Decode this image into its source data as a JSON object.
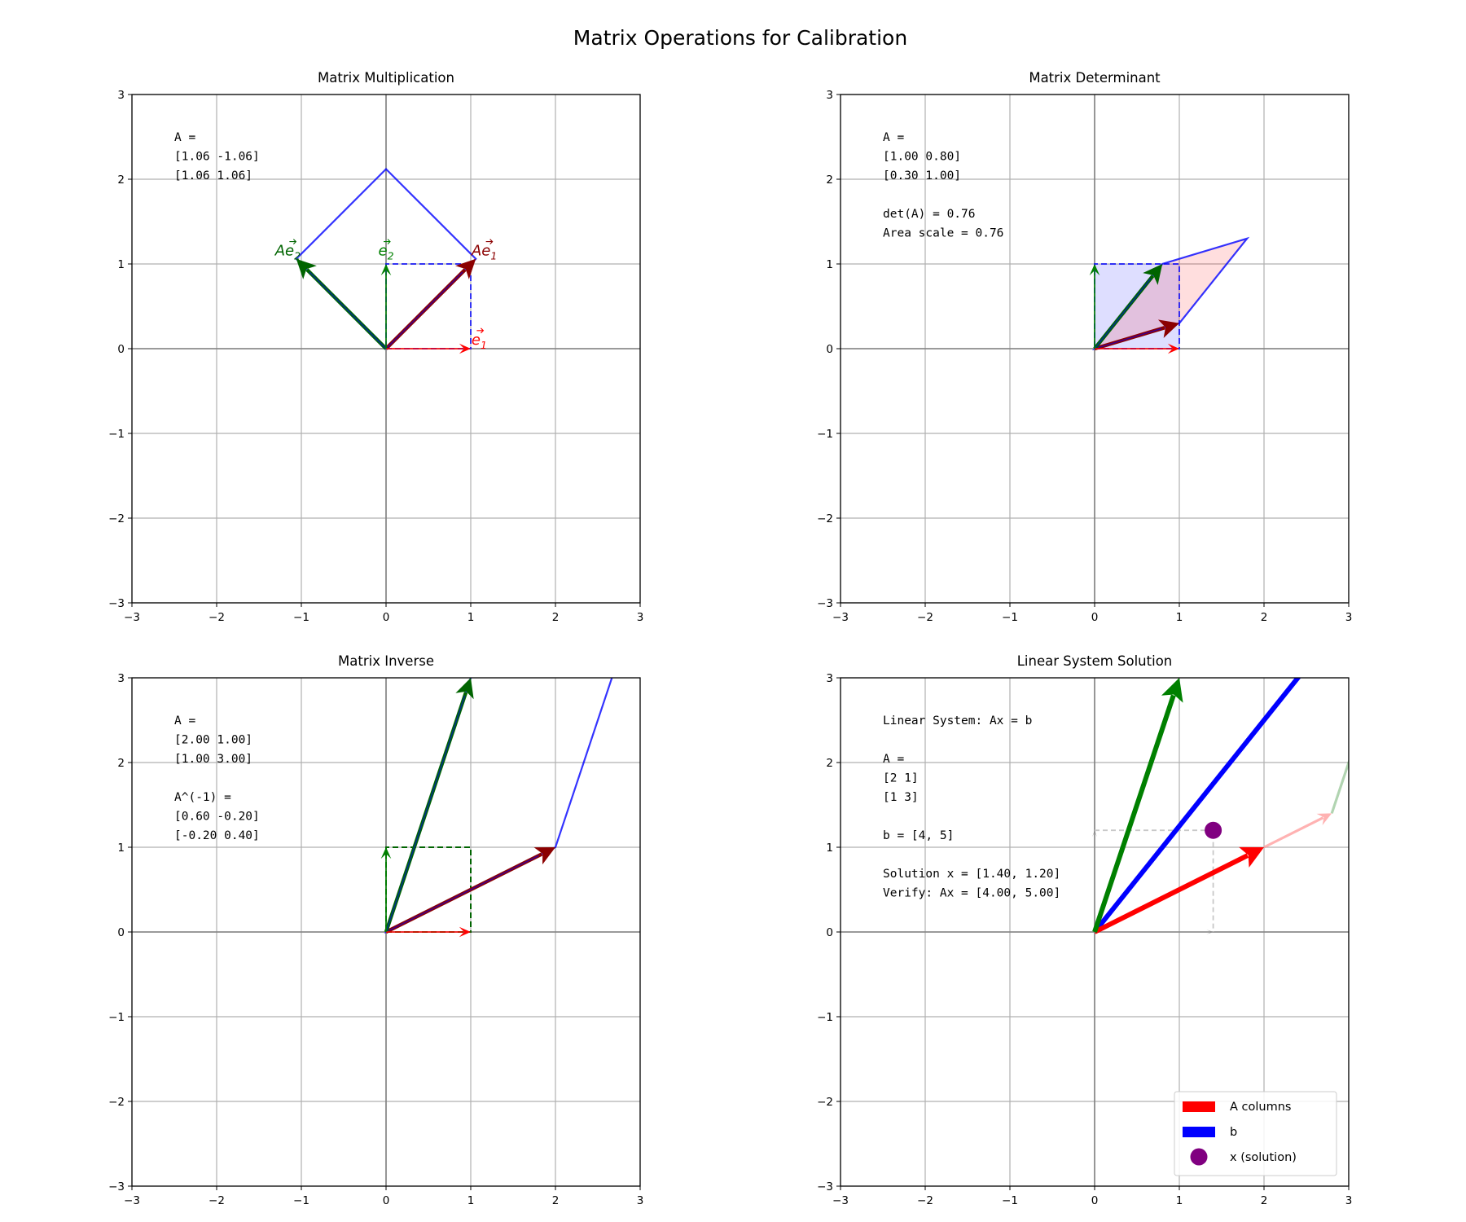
{
  "figure": {
    "title": "Matrix Operations for Calibration"
  },
  "colors": {
    "red": "#ff0000",
    "darkred": "#8b0000",
    "green": "#008000",
    "darkgreen": "#006400",
    "blue": "#0000ff",
    "purple": "#800080",
    "grid": "#b0b0b0",
    "axis": "#808080"
  },
  "chart_data": [
    {
      "id": "mult",
      "type": "vector-plot",
      "title": "Matrix Multiplication",
      "xlim": [
        -3,
        3
      ],
      "ylim": [
        -3,
        3
      ],
      "xticks": [
        "−3",
        "−2",
        "−1",
        "0",
        "1",
        "2",
        "3"
      ],
      "yticks": [
        "−3",
        "−2",
        "−1",
        "0",
        "1",
        "2",
        "3"
      ],
      "grid": true,
      "annotation": [
        "A =",
        "[1.06 -1.06]",
        "[1.06 1.06]"
      ],
      "matrix": [
        [
          1.06,
          -1.06
        ],
        [
          1.06,
          1.06
        ]
      ],
      "vectors": [
        {
          "name": "e1",
          "to": [
            1,
            0
          ],
          "color": "red",
          "width": 1.6
        },
        {
          "name": "e2",
          "to": [
            0,
            1
          ],
          "color": "green",
          "width": 1.6
        },
        {
          "name": "Ae1",
          "to": [
            1.06,
            1.06
          ],
          "color": "darkred",
          "width": 4.5
        },
        {
          "name": "Ae2",
          "to": [
            -1.06,
            1.06
          ],
          "color": "darkgreen",
          "width": 4.5
        }
      ],
      "unit_square": [
        [
          0,
          0
        ],
        [
          1,
          0
        ],
        [
          1,
          1
        ],
        [
          0,
          1
        ]
      ],
      "transformed": [
        [
          0,
          0
        ],
        [
          1.06,
          1.06
        ],
        [
          0,
          2.12
        ],
        [
          -1.06,
          1.06
        ]
      ],
      "labels": [
        {
          "id": "e1",
          "base": "e",
          "sub": "1",
          "at": [
            1.1,
            0.05
          ],
          "color": "red"
        },
        {
          "id": "e2",
          "base": "e",
          "sub": "2",
          "at": [
            0.0,
            1.1
          ],
          "color": "green"
        },
        {
          "id": "ae1",
          "base": "Ae",
          "sub": "1",
          "at": [
            1.16,
            1.1
          ],
          "color": "darkred"
        },
        {
          "id": "ae2",
          "base": "Ae",
          "sub": "2",
          "at": [
            -1.16,
            1.1
          ],
          "color": "darkgreen"
        }
      ]
    },
    {
      "id": "det",
      "type": "vector-plot",
      "title": "Matrix Determinant",
      "xlim": [
        -3,
        3
      ],
      "ylim": [
        -3,
        3
      ],
      "xticks": [
        "−3",
        "−2",
        "−1",
        "0",
        "1",
        "2",
        "3"
      ],
      "yticks": [
        "−3",
        "−2",
        "−1",
        "0",
        "1",
        "2",
        "3"
      ],
      "grid": true,
      "annotation": [
        "A =",
        "[1.00 0.80]",
        "[0.30 1.00]",
        "",
        "det(A) = 0.76",
        "Area scale = 0.76"
      ],
      "matrix": [
        [
          1.0,
          0.8
        ],
        [
          0.3,
          1.0
        ]
      ],
      "determinant": 0.76,
      "vectors": [
        {
          "name": "e1",
          "to": [
            1,
            0
          ],
          "color": "red",
          "width": 1.6
        },
        {
          "name": "e2",
          "to": [
            0,
            1
          ],
          "color": "green",
          "width": 1.6
        },
        {
          "name": "Ae1",
          "to": [
            1.0,
            0.3
          ],
          "color": "darkred",
          "width": 4.5
        },
        {
          "name": "Ae2",
          "to": [
            0.8,
            1.0
          ],
          "color": "darkgreen",
          "width": 4.5
        }
      ],
      "unit_square": [
        [
          0,
          0
        ],
        [
          1,
          0
        ],
        [
          1,
          1
        ],
        [
          0,
          1
        ]
      ],
      "transformed": [
        [
          0,
          0
        ],
        [
          1.0,
          0.3
        ],
        [
          1.8,
          1.3
        ],
        [
          0.8,
          1.0
        ]
      ]
    },
    {
      "id": "inv",
      "type": "vector-plot",
      "title": "Matrix Inverse",
      "xlim": [
        -3,
        3
      ],
      "ylim": [
        -3,
        3
      ],
      "xticks": [
        "−3",
        "−2",
        "−1",
        "0",
        "1",
        "2",
        "3"
      ],
      "yticks": [
        "−3",
        "−2",
        "−1",
        "0",
        "1",
        "2",
        "3"
      ],
      "grid": true,
      "annotation": [
        "A =",
        "[2.00 1.00]",
        "[1.00 3.00]",
        "",
        "A^(-1) =",
        "[0.60 -0.20]",
        "[-0.20 0.40]"
      ],
      "matrix": [
        [
          2.0,
          1.0
        ],
        [
          1.0,
          3.0
        ]
      ],
      "inverse": [
        [
          0.6,
          -0.2
        ],
        [
          -0.2,
          0.4
        ]
      ],
      "vectors": [
        {
          "name": "e1",
          "to": [
            1,
            0
          ],
          "color": "red",
          "width": 1.6
        },
        {
          "name": "e2",
          "to": [
            0,
            1
          ],
          "color": "green",
          "width": 1.6
        },
        {
          "name": "Ae1",
          "to": [
            2.0,
            1.0
          ],
          "color": "darkred",
          "width": 4.5
        },
        {
          "name": "Ae2",
          "to": [
            1.0,
            3.0
          ],
          "color": "darkgreen",
          "width": 4.5
        }
      ],
      "unit_square": [
        [
          0,
          0
        ],
        [
          1,
          0
        ],
        [
          1,
          1
        ],
        [
          0,
          1
        ]
      ],
      "transformed": [
        [
          0,
          0
        ],
        [
          2,
          1
        ],
        [
          3,
          4
        ],
        [
          1,
          3
        ]
      ]
    },
    {
      "id": "lin",
      "type": "vector-plot",
      "title": "Linear System Solution",
      "xlim": [
        -3,
        3
      ],
      "ylim": [
        -3,
        3
      ],
      "xticks": [
        "−3",
        "−2",
        "−1",
        "0",
        "1",
        "2",
        "3"
      ],
      "yticks": [
        "−3",
        "−2",
        "−1",
        "0",
        "1",
        "2",
        "3"
      ],
      "grid": true,
      "annotation": [
        "Linear System: Ax = b",
        "",
        "A =",
        "[2 1]",
        "[1 3]",
        "",
        "b = [4, 5]",
        "",
        "Solution x = [1.40, 1.20]",
        "Verify: Ax = [4.00, 5.00]"
      ],
      "A": [
        [
          2,
          1
        ],
        [
          1,
          3
        ]
      ],
      "b": [
        4,
        5
      ],
      "solution": [
        1.4,
        1.2
      ],
      "legend": {
        "placement": "lower right",
        "entries": [
          {
            "label": "A columns",
            "color": "red",
            "kind": "bar"
          },
          {
            "label": "b",
            "color": "blue",
            "kind": "bar"
          },
          {
            "label": "x (solution)",
            "color": "purple",
            "kind": "dot"
          }
        ]
      }
    }
  ]
}
